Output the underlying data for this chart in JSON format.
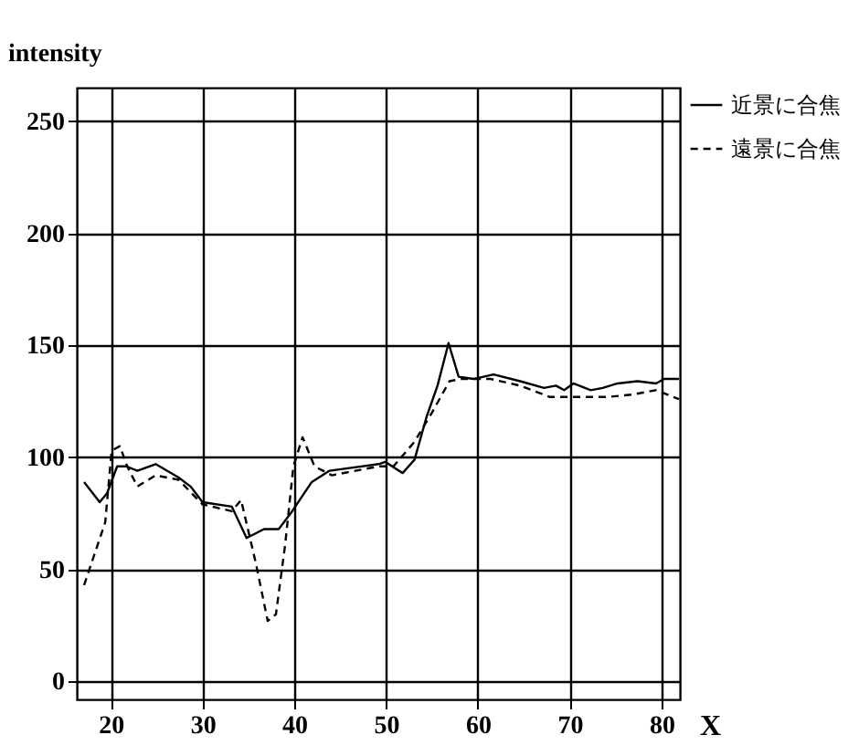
{
  "chart_data": {
    "type": "line",
    "xlabel": "X",
    "ylabel": "intensity",
    "xlim": [
      16.3,
      82
    ],
    "ylim": [
      -8,
      265
    ],
    "xticks": [
      20,
      30,
      40,
      50,
      60,
      70,
      80
    ],
    "yticks": [
      0,
      50,
      100,
      150,
      200,
      250
    ],
    "grid": true,
    "legend": "top right",
    "marker": "none",
    "series": [
      {
        "name": "近景に合焦",
        "color": "#000000",
        "line_style": "solid",
        "x": [
          17.1,
          18.8,
          19.6,
          20.7,
          21.7,
          22.9,
          24.9,
          27.4,
          28.7,
          30,
          33.2,
          34.8,
          36.7,
          38.3,
          39.6,
          41.9,
          43.8,
          49.2,
          49.9,
          51.8,
          53.1,
          54.4,
          55.6,
          56.8,
          57.9,
          59.5,
          61.7,
          64.6,
          67.2,
          68.5,
          69.4,
          70.4,
          72.3,
          73.6,
          75.2,
          77.4,
          79.4,
          80.3,
          81.9
        ],
        "values": [
          89,
          80,
          84,
          96,
          96,
          94,
          97,
          91,
          87,
          80,
          78,
          64,
          68,
          68,
          75,
          89,
          94,
          97,
          98,
          93,
          99,
          118,
          132,
          151,
          136,
          135,
          137,
          134,
          131,
          132,
          130,
          133,
          130,
          131,
          133,
          134,
          133,
          135,
          135
        ]
      },
      {
        "name": "遠景に合焦",
        "color": "#000000",
        "line_style": "dashed",
        "x": [
          17.1,
          19.4,
          20.1,
          21,
          21.8,
          22.9,
          24.9,
          27.4,
          30,
          33.2,
          34.2,
          35.8,
          37.1,
          38,
          39,
          39.9,
          40.9,
          42.2,
          44.1,
          49.2,
          50.8,
          53.1,
          55,
          56.9,
          58.2,
          61.4,
          64.6,
          67.8,
          71,
          74.2,
          76.8,
          79.4,
          81.9
        ],
        "values": [
          43,
          71,
          103,
          105,
          96,
          87,
          92,
          90,
          79,
          76,
          81,
          53,
          27,
          30,
          61,
          96,
          109,
          96,
          92,
          96,
          96,
          107,
          120,
          134,
          135,
          135,
          132,
          127,
          127,
          127,
          128,
          130,
          126
        ]
      }
    ]
  }
}
